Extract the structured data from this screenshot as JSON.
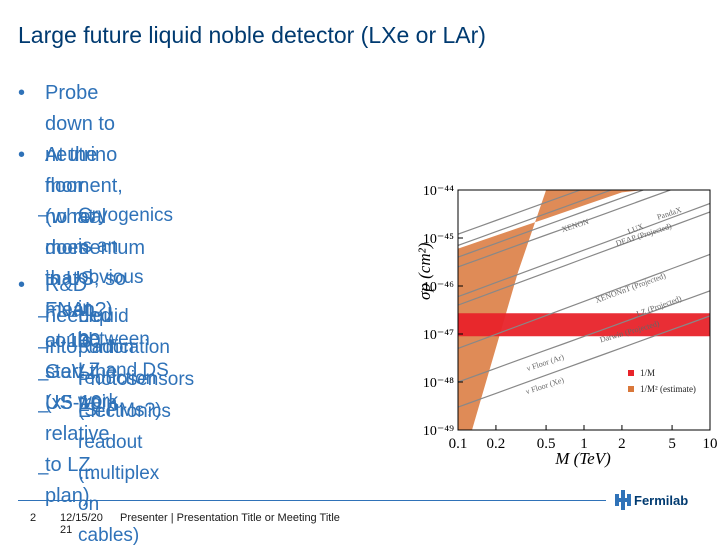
{
  "title": "Large future liquid noble detector (LXe or LAr)",
  "bullets": [
    {
      "marker": "•",
      "lines": [
        "Probe down to neutrino floor (what does that mean?) at 100",
        "GeV (x5-10 relative to LZ plan)"
      ]
    },
    {
      "marker": "•",
      "lines": [
        "At the moment, no real momentum in US, so FNAL could",
        "start the US train"
      ]
    }
  ],
  "sub_bullet_1": {
    "marker": "–",
    "lines": [
      "Cryogenics is an obvious",
      "in, between LZ and DS work."
    ]
  },
  "bullet_rd": {
    "marker": "•",
    "text": "R&D needed into:"
  },
  "rd_items": [
    {
      "marker": "–",
      "lines": [
        "Liquid purification"
      ]
    },
    {
      "marker": "–",
      "lines": [
        "Radon reduction"
      ]
    },
    {
      "marker": "–",
      "lines": [
        "Photosensors (Si.PMs?)"
      ]
    },
    {
      "marker": "–",
      "lines": [
        "Electronics readout (multiplex on",
        "cables)"
      ]
    },
    {
      "marker": "–",
      "lines": [
        "…"
      ]
    }
  ],
  "footer": {
    "page_number": "2",
    "date_line1": "12/15/20",
    "date_line2": "21",
    "presenter": "Presenter | Presentation Title or Meeting Title",
    "logo_text": "Fermilab"
  },
  "chart_data": {
    "type": "line",
    "xlabel": "M (TeV)",
    "ylabel": "σp (cm²)",
    "x_scale": "log",
    "y_scale": "log",
    "xlim": [
      0.1,
      10
    ],
    "ylim": [
      1e-49,
      1e-44
    ],
    "x_ticks": [
      "0.1",
      "0.2",
      "0.5",
      "1",
      "2",
      "5",
      "10"
    ],
    "y_ticks": [
      "10⁻⁴⁴",
      "10⁻⁴⁵",
      "10⁻⁴⁶",
      "10⁻⁴⁷",
      "10⁻⁴⁸",
      "10⁻⁴⁹"
    ],
    "curve_labels": [
      "LUX",
      "PandaX",
      "XENON",
      "DEAP (Projected)",
      "XENONnT (Projected)",
      "LZ (Projected)",
      "Darwin (Projected)",
      "ν Floor (Ar)",
      "ν Floor (Xe)"
    ],
    "legend": [
      "1/M",
      "1/M² (estimate)"
    ],
    "colors": {
      "band_1_over_M": "#e8232a",
      "band_1_over_M2": "#d9773a",
      "curves": "#888888"
    }
  }
}
